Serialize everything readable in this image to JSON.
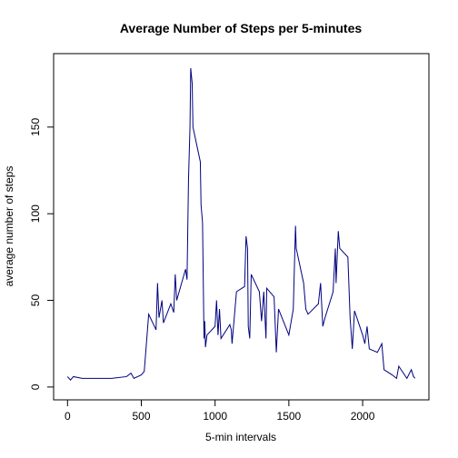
{
  "chart_data": {
    "type": "line",
    "title": "Average Number of Steps per 5-minutes",
    "xlabel": "5-min intervals",
    "ylabel": "average number of steps",
    "x": [
      0,
      20,
      40,
      100,
      200,
      300,
      400,
      430,
      450,
      500,
      520,
      550,
      600,
      610,
      620,
      640,
      650,
      700,
      720,
      730,
      740,
      800,
      810,
      820,
      830,
      835,
      845,
      850,
      900,
      905,
      915,
      925,
      930,
      935,
      945,
      1000,
      1010,
      1020,
      1030,
      1040,
      1100,
      1110,
      1115,
      1130,
      1145,
      1200,
      1210,
      1220,
      1225,
      1235,
      1245,
      1300,
      1315,
      1330,
      1345,
      1350,
      1400,
      1415,
      1430,
      1500,
      1530,
      1545,
      1550,
      1600,
      1615,
      1630,
      1700,
      1715,
      1730,
      1745,
      1800,
      1815,
      1820,
      1835,
      1845,
      1900,
      1915,
      1930,
      1945,
      2000,
      2015,
      2030,
      2045,
      2100,
      2130,
      2145,
      2200,
      2230,
      2245,
      2300,
      2330,
      2345,
      2355
    ],
    "series": [
      {
        "name": "average number of steps",
        "color": "#000080",
        "values": [
          6,
          4,
          6,
          5,
          5,
          5,
          6,
          8,
          5,
          7,
          9,
          42,
          33,
          60,
          40,
          50,
          37,
          48,
          43,
          65,
          50,
          68,
          62,
          120,
          150,
          184,
          175,
          150,
          130,
          105,
          95,
          28,
          38,
          23,
          30,
          35,
          50,
          30,
          45,
          28,
          36,
          33,
          25,
          40,
          55,
          58,
          87,
          80,
          35,
          28,
          65,
          55,
          38,
          55,
          28,
          57,
          52,
          20,
          45,
          30,
          45,
          93,
          80,
          60,
          45,
          42,
          48,
          60,
          35,
          40,
          55,
          80,
          60,
          90,
          80,
          75,
          40,
          22,
          44,
          30,
          25,
          35,
          22,
          20,
          25,
          10,
          7,
          5,
          12,
          5,
          10,
          6,
          5
        ]
      }
    ],
    "xlim": [
      -94.2,
      2449.2
    ],
    "ylim": [
      -7.4,
      192.4
    ],
    "xticks": [
      0,
      500,
      1000,
      1500,
      2000
    ],
    "yticks": [
      0,
      50,
      100,
      150
    ],
    "grid": false
  }
}
